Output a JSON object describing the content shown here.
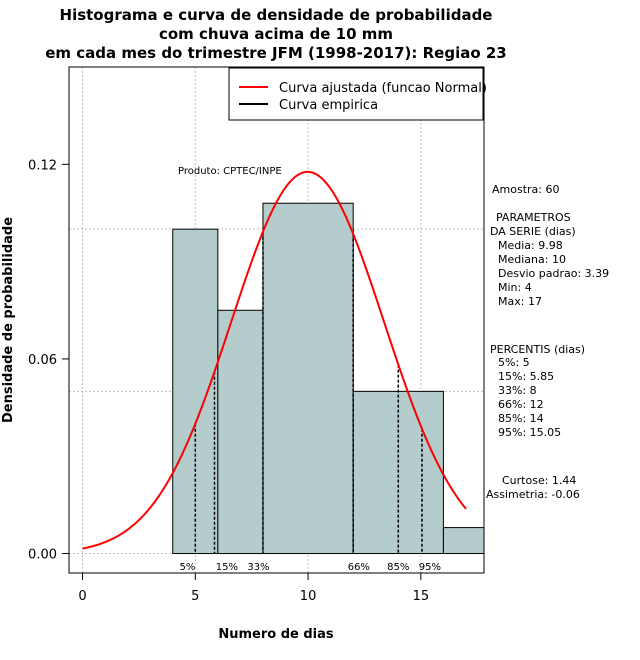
{
  "chart_data": {
    "type": "bar",
    "title": [
      "Histograma e curva de densidade de probabilidade",
      "com chuva acima de 10 mm",
      "em cada mes do trimestre JFM (1998-2017): Regiao 23"
    ],
    "xlabel": "Numero de dias",
    "ylabel": "Densidade de probabilidade",
    "xlim": [
      -0.6,
      17.8
    ],
    "ylim": [
      -0.006,
      0.15
    ],
    "x_ticks": [
      "0",
      "5",
      "10",
      "15"
    ],
    "y_ticks": [
      "0.00",
      "0.06",
      "0.12"
    ],
    "bins": [
      {
        "x0": 4,
        "x1": 6,
        "density": 0.1
      },
      {
        "x0": 6,
        "x1": 8,
        "density": 0.075
      },
      {
        "x0": 8,
        "x1": 12,
        "density": 0.108
      },
      {
        "x0": 12,
        "x1": 16,
        "density": 0.05
      },
      {
        "x0": 16,
        "x1": 18,
        "density": 0.008
      }
    ],
    "bar_color": "#b5cccc",
    "curve_color": "#ff0000",
    "normal_curve": {
      "mean": 9.98,
      "sd": 3.39,
      "x_range": [
        0,
        17
      ]
    },
    "percentile_lines": [
      {
        "label": "5%",
        "x": 5
      },
      {
        "label": "15%",
        "x": 5.85
      },
      {
        "label": "33%",
        "x": 8
      },
      {
        "label": "66%",
        "x": 12
      },
      {
        "label": "85%",
        "x": 14
      },
      {
        "label": "95%",
        "x": 15.05
      }
    ],
    "grid": true,
    "legend": {
      "position": "top-right",
      "entries": [
        {
          "label": "Curva ajustada (funcao Normal)",
          "color": "#ff0000"
        },
        {
          "label": "Curva empirica",
          "color": "#000000"
        }
      ]
    },
    "annotation": "Produto: CPTEC/INPE"
  },
  "side_panel": {
    "lines": [
      "Amostra: 60",
      "PARAMETROS",
      "DA SERIE (dias)",
      "Media: 9.98",
      "Mediana: 10",
      "Desvio padrao: 3.39",
      "Min: 4",
      "Max: 17",
      "PERCENTIS (dias)",
      "5%: 5",
      "15%: 5.85",
      "33%: 8",
      "66%: 12",
      "85%: 14",
      "95%: 15.05",
      "Curtose: 1.44",
      "Assimetria: -0.06"
    ]
  }
}
